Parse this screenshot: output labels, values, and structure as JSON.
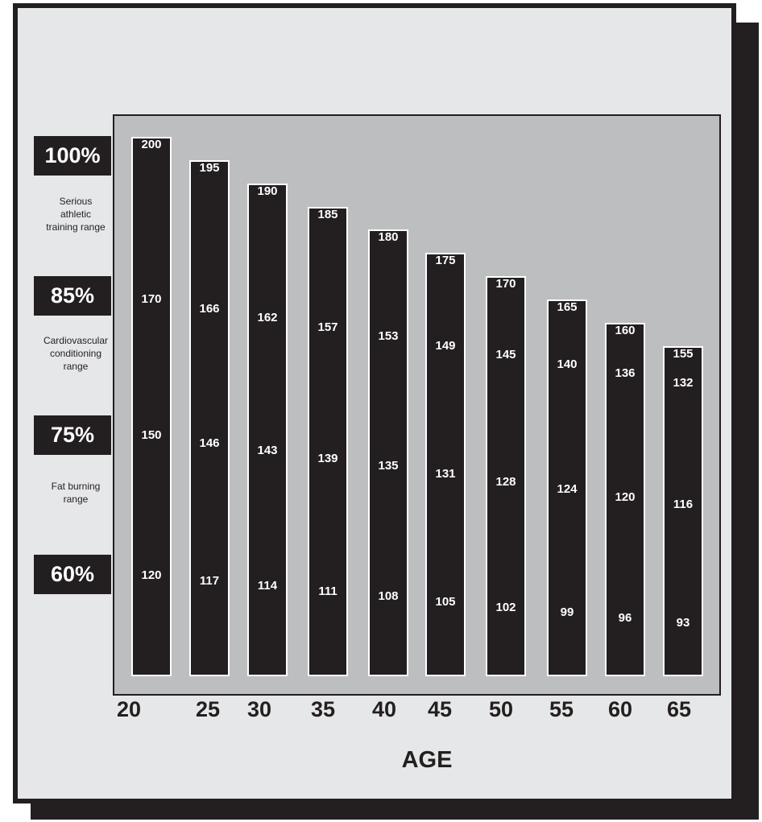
{
  "chart_data": {
    "type": "bar",
    "xlabel": "AGE",
    "categories": [
      "20",
      "25",
      "30",
      "35",
      "40",
      "45",
      "50",
      "55",
      "60",
      "65"
    ],
    "series": [
      {
        "values": [
          200,
          195,
          190,
          185,
          180,
          175,
          170,
          165,
          160,
          155
        ]
      },
      {
        "values": [
          170,
          166,
          162,
          157,
          153,
          149,
          145,
          140,
          136,
          132
        ]
      },
      {
        "values": [
          150,
          146,
          143,
          139,
          135,
          131,
          128,
          124,
          120,
          116
        ]
      },
      {
        "values": [
          120,
          117,
          114,
          111,
          108,
          105,
          102,
          99,
          96,
          93
        ]
      }
    ],
    "percent_labels": [
      "100%",
      "85%",
      "75%",
      "60%"
    ],
    "zones": [
      {
        "lines": [
          "Serious",
          "athletic",
          "training range"
        ]
      },
      {
        "lines": [
          "Cardiovascular",
          "conditioning",
          "range"
        ]
      },
      {
        "lines": [
          "Fat burning",
          "range"
        ]
      }
    ],
    "colors": {
      "bar": "#231f20",
      "plot_background": "#bcbec0",
      "page": "#e6e7e8",
      "bar_text": "#ffffff"
    }
  }
}
